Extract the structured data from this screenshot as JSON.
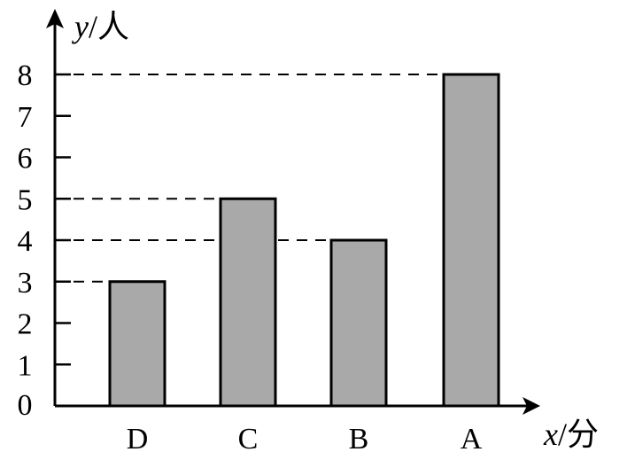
{
  "chart_data": {
    "type": "bar",
    "categories": [
      "D",
      "C",
      "B",
      "A"
    ],
    "values": [
      3,
      5,
      4,
      8
    ],
    "y_ticks": [
      "0",
      "1",
      "2",
      "3",
      "4",
      "5",
      "6",
      "7",
      "8"
    ],
    "ylim": [
      0,
      8
    ],
    "xlabel": {
      "var": "x",
      "unit": "/分"
    },
    "ylabel": {
      "var": "y",
      "unit": "/人"
    },
    "grid": false,
    "bar_color": "#a9a9a9",
    "guide_lines": "dashed from y-axis to bar tops"
  }
}
